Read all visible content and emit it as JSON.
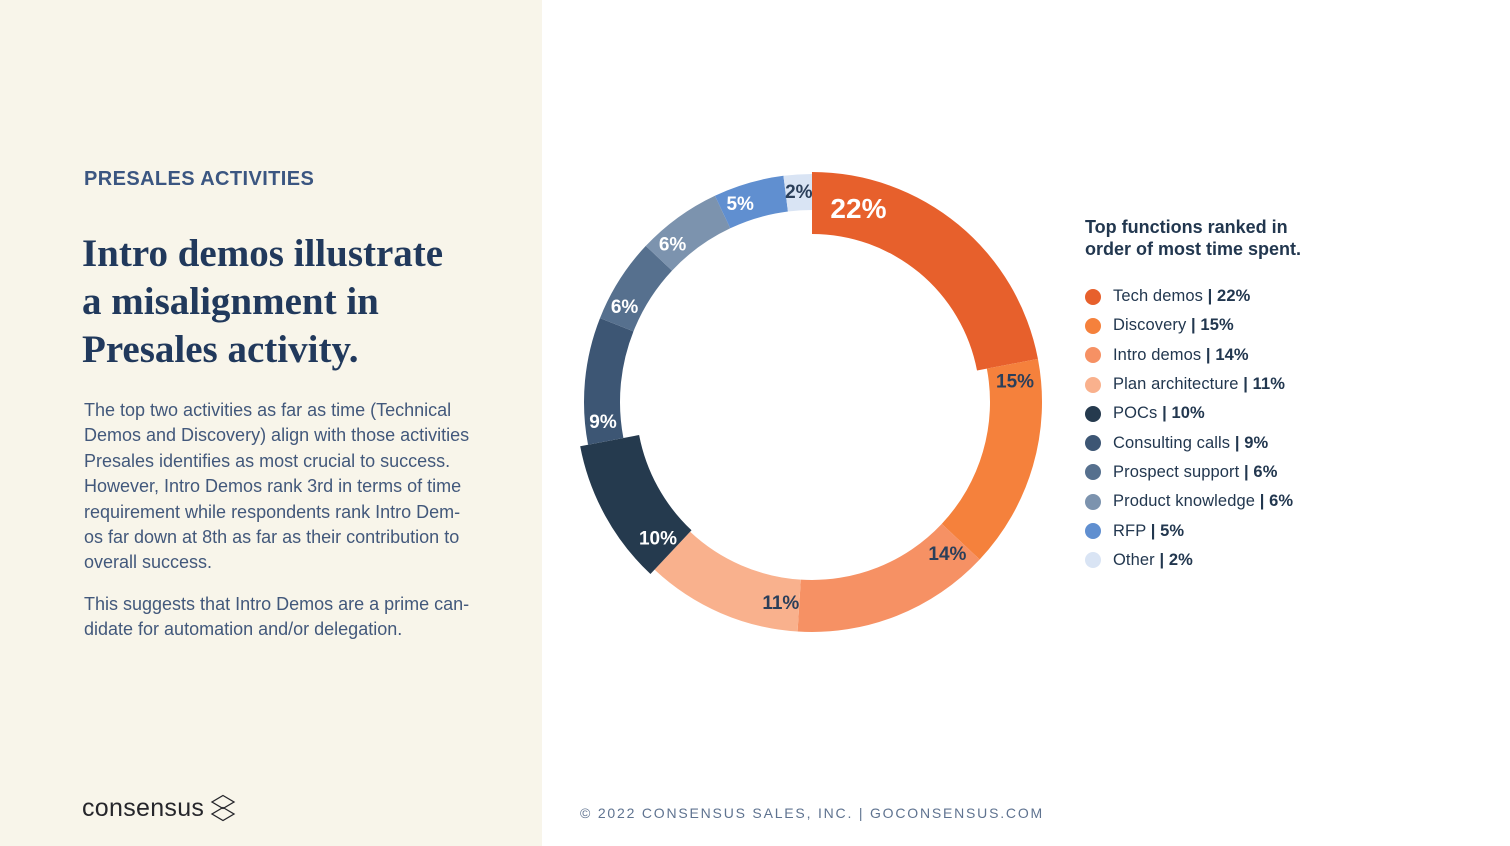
{
  "left_panel": {
    "eyebrow": "PRESALES ACTIVITIES",
    "heading": "Intro demos illustrate\na misalignment in\nPresales activity.",
    "body_1": "The top two activities as far as time (Technical\nDemos and Discovery) align with those activities\nPresales identifies as most crucial to success.\nHowever, Intro Demos rank 3rd in terms of time\nrequirement while respondents rank Intro Dem-\nos far down at 8th as far as their contribution to\noverall success.",
    "body_2": "This suggests that Intro Demos are a prime can-\ndidate for automation and/or delegation.",
    "logo_text": "consensus"
  },
  "chart_data": {
    "type": "pie",
    "donut": true,
    "start_angle_deg": 0,
    "direction": "clockwise",
    "legend_position": "right",
    "legend_title": "Top functions ranked in\norder of most time spent.",
    "slices": [
      {
        "label": "Tech demos",
        "value": 22,
        "color": "#E7602C",
        "label_color": "#FFFFFF"
      },
      {
        "label": "Discovery",
        "value": 15,
        "color": "#F5813C",
        "label_color": "#2B3F5A"
      },
      {
        "label": "Intro demos",
        "value": 14,
        "color": "#F69164",
        "label_color": "#2B3F5A"
      },
      {
        "label": "Plan architecture",
        "value": 11,
        "color": "#F9B18D",
        "label_color": "#2B3F5A"
      },
      {
        "label": "POCs",
        "value": 10,
        "color": "#253A4E",
        "label_color": "#FFFFFF"
      },
      {
        "label": "Consulting calls",
        "value": 9,
        "color": "#3D5674",
        "label_color": "#FFFFFF"
      },
      {
        "label": "Prospect support",
        "value": 6,
        "color": "#56708E",
        "label_color": "#FFFFFF"
      },
      {
        "label": "Product knowledge",
        "value": 6,
        "color": "#7C93AE",
        "label_color": "#FFFFFF"
      },
      {
        "label": "RFP",
        "value": 5,
        "color": "#608FD0",
        "label_color": "#FFFFFF"
      },
      {
        "label": "Other",
        "value": 2,
        "color": "#D9E4F4",
        "label_color": "#2B3F5A"
      }
    ]
  },
  "legend": {
    "title": "Top functions ranked in\norder of most time spent.",
    "separator": "|"
  },
  "footer": {
    "copyright": "© 2022 CONSENSUS SALES, INC. | GOCONSENSUS.COM"
  }
}
